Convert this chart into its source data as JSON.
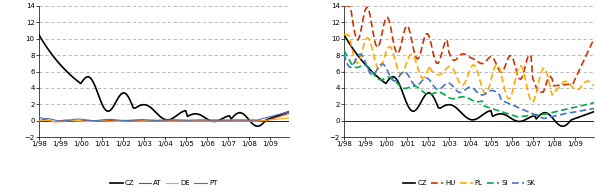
{
  "x_labels": [
    "1/98",
    "1/99",
    "1/00",
    "1/01",
    "1/02",
    "1/03",
    "1/04",
    "1/05",
    "1/06",
    "1/07",
    "1/08",
    "1/09"
  ],
  "ylim": [
    -2,
    14
  ],
  "yticks": [
    -2,
    0,
    2,
    4,
    6,
    8,
    10,
    12,
    14
  ],
  "background": "#ffffff",
  "grid_color": "#b0b0b0",
  "chart1": {
    "CZ": {
      "color": "#000000",
      "lw": 1.2,
      "dashes": null
    },
    "AT": {
      "color": "#cc3300",
      "lw": 0.8,
      "dashes": null
    },
    "DE": {
      "color": "#ffaa00",
      "lw": 0.8,
      "dashes": null
    },
    "PT": {
      "color": "#4472c4",
      "lw": 0.8,
      "dashes": null
    }
  },
  "chart2": {
    "CZ": {
      "color": "#000000",
      "lw": 1.2,
      "dashes": null
    },
    "HU": {
      "color": "#cc3300",
      "lw": 1.2,
      "dashes": [
        4,
        2
      ]
    },
    "PL": {
      "color": "#ffaa00",
      "lw": 1.2,
      "dashes": [
        4,
        2
      ]
    },
    "SI": {
      "color": "#00aa44",
      "lw": 1.2,
      "dashes": [
        4,
        2
      ]
    },
    "SK": {
      "color": "#4472c4",
      "lw": 1.2,
      "dashes": [
        4,
        2
      ]
    }
  }
}
